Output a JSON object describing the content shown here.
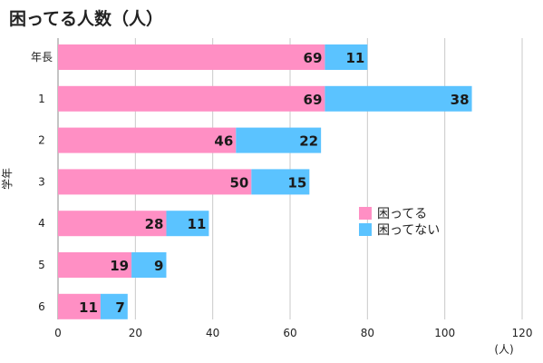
{
  "chart_data": {
    "type": "bar",
    "orientation": "horizontal",
    "stacked": true,
    "title": "困ってる人数（人）",
    "xlabel": "(人)",
    "ylabel": "学年",
    "categories": [
      "年長",
      "1",
      "2",
      "3",
      "4",
      "5",
      "6"
    ],
    "series": [
      {
        "name": "困ってる",
        "color": "#ff8fc4",
        "values": [
          69,
          69,
          46,
          50,
          28,
          19,
          11
        ]
      },
      {
        "name": "困ってない",
        "color": "#5bc3ff",
        "values": [
          11,
          38,
          22,
          15,
          11,
          9,
          7
        ]
      }
    ],
    "xlim": [
      0,
      120
    ],
    "xticks": [
      0,
      20,
      40,
      60,
      80,
      100,
      120
    ],
    "grid": true,
    "legend_position": "right",
    "data_labels": true
  }
}
